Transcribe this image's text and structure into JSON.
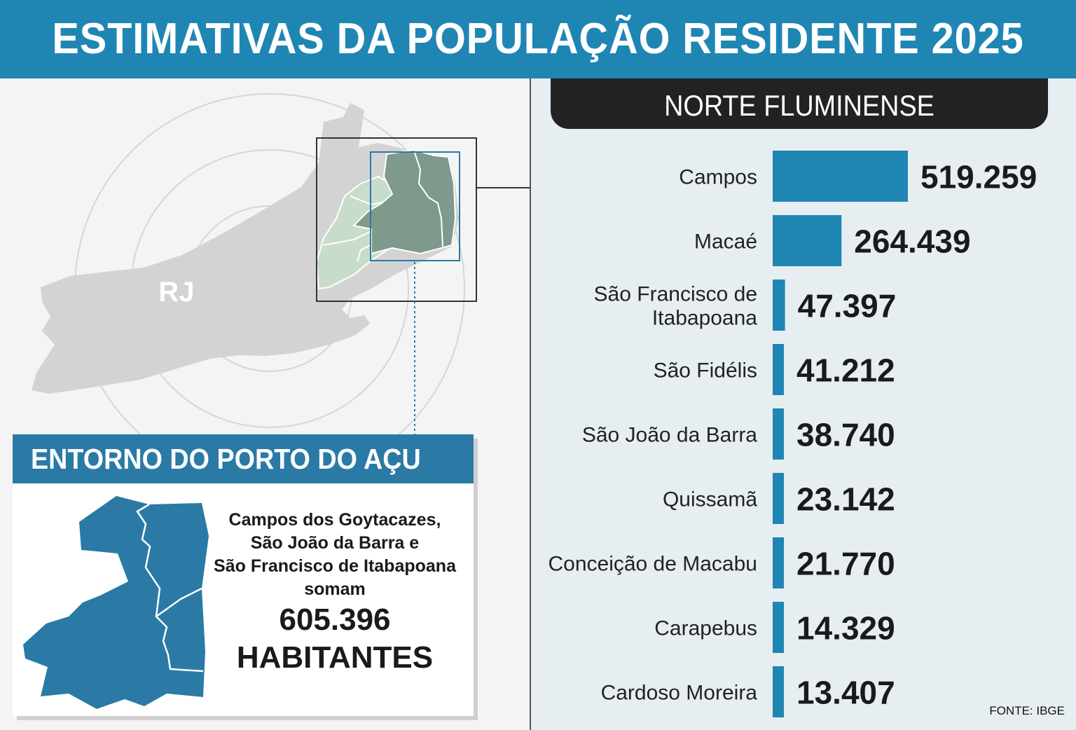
{
  "title": "ESTIMATIVAS DA POPULAÇÃO RESIDENTE 2025",
  "map": {
    "state_label": "RJ"
  },
  "region_title": "NORTE FLUMINENSE",
  "source": "FONTE: IBGE",
  "colors": {
    "accent": "#1f86b4",
    "bar": "#1f86b4",
    "header_dark": "#222222",
    "box_header": "#2a7aa5"
  },
  "porto_box": {
    "title": "ENTORNO DO PORTO DO AÇU",
    "lines": [
      "Campos dos Goytacazes,",
      "São João da Barra e",
      "São Francisco de Itabapoana",
      "somam"
    ],
    "total": "605.396",
    "unit": "HABITANTES"
  },
  "chart_data": {
    "type": "bar",
    "orientation": "horizontal",
    "title": "NORTE FLUMINENSE",
    "categories": [
      "Campos",
      "Macaé",
      "São Francisco de Itabapoana",
      "São Fidélis",
      "São João da Barra",
      "Quissamã",
      "Conceição de Macabu",
      "Carapebus",
      "Cardoso Moreira"
    ],
    "category_lines": [
      [
        "Campos"
      ],
      [
        "Macaé"
      ],
      [
        "São Francisco de",
        "Itabapoana"
      ],
      [
        "São Fidélis"
      ],
      [
        "São João da Barra"
      ],
      [
        "Quissamã"
      ],
      [
        "Conceição de Macabu"
      ],
      [
        "Carapebus"
      ],
      [
        "Cardoso Moreira"
      ]
    ],
    "values": [
      519259,
      264439,
      47397,
      41212,
      38740,
      23142,
      21770,
      14329,
      13407
    ],
    "value_labels": [
      "519.259",
      "264.439",
      "47.397",
      "41.212",
      "38.740",
      "23.142",
      "21.770",
      "14.329",
      "13.407"
    ],
    "xlim": [
      0,
      519259
    ]
  }
}
